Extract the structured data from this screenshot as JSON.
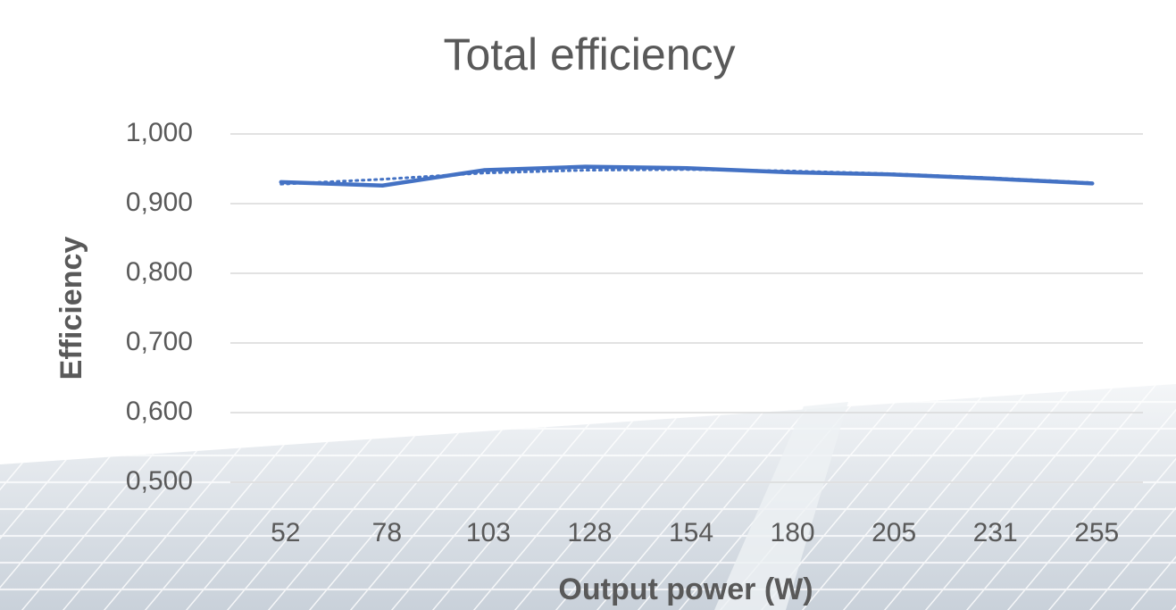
{
  "chart_data": {
    "type": "line",
    "title": "Total efficiency",
    "x_label": "Output power (W)",
    "y_label": "Efficiency",
    "categories": [
      "52",
      "78",
      "103",
      "128",
      "154",
      "180",
      "205",
      "231",
      "255"
    ],
    "series": [
      {
        "color": "#4472c4",
        "style": "solid",
        "values": [
          0.931,
          0.926,
          0.948,
          0.953,
          0.951,
          0.945,
          0.942,
          0.936,
          0.929
        ]
      },
      {
        "color": "#4472c4",
        "style": "dotted",
        "values": [
          0.928,
          0.935,
          0.944,
          0.948,
          0.949,
          0.947,
          0.943,
          0.937,
          0.93
        ]
      }
    ],
    "ylim": [
      0.5,
      1.0
    ],
    "yticks": [
      {
        "value": 0.5,
        "label": "0,500"
      },
      {
        "value": 0.6,
        "label": "0,600"
      },
      {
        "value": 0.7,
        "label": "0,700"
      },
      {
        "value": 0.8,
        "label": "0,800"
      },
      {
        "value": 0.9,
        "label": "0,900"
      },
      {
        "value": 1.0,
        "label": "1,000"
      }
    ],
    "grid": true
  }
}
